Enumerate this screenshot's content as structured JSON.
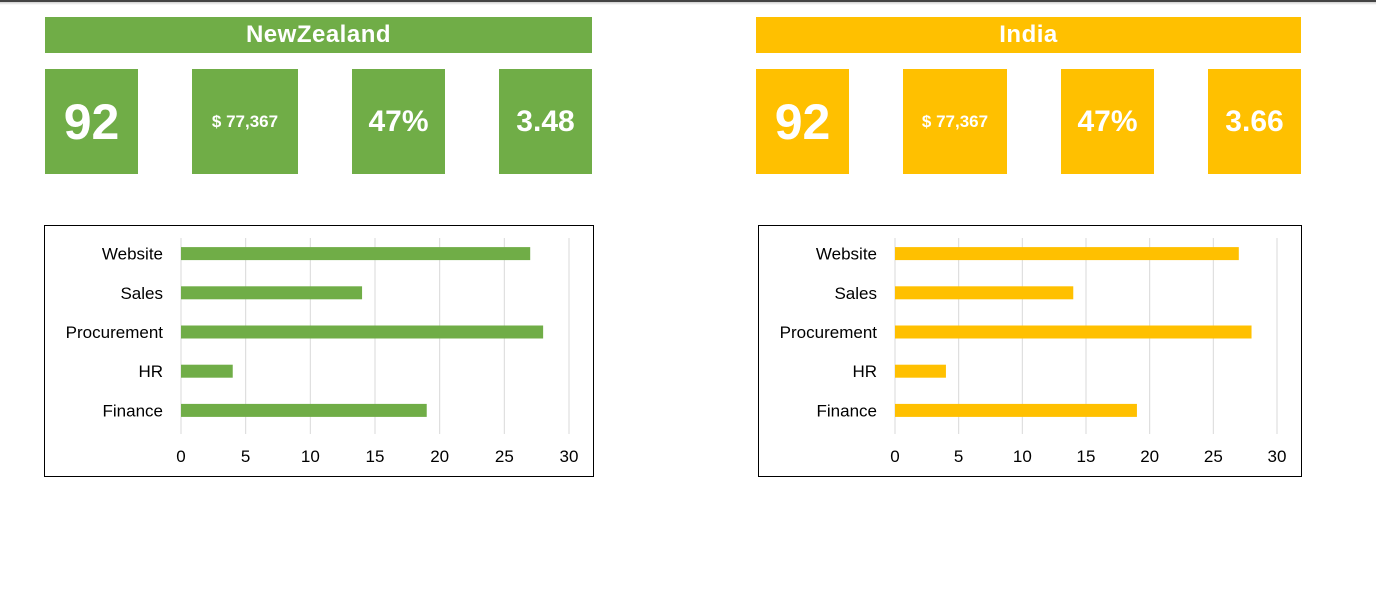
{
  "panels": [
    {
      "title": "NewZealand",
      "color": "#70AD47",
      "kpis": {
        "count": "92",
        "money": "$  77,367",
        "percent": "47%",
        "score": "3.48"
      }
    },
    {
      "title": "India",
      "color": "#FFC000",
      "kpis": {
        "count": "92",
        "money": "$ 77,367",
        "percent": "47%",
        "score": "3.66"
      }
    }
  ],
  "chart_data": [
    {
      "type": "bar",
      "orientation": "horizontal",
      "categories": [
        "Website",
        "Sales",
        "Procurement",
        "HR",
        "Finance"
      ],
      "values": [
        27,
        14,
        28,
        4,
        19
      ],
      "xlim": [
        0,
        30
      ],
      "xticks": [
        0,
        5,
        10,
        15,
        20,
        25,
        30
      ],
      "grid": true,
      "legend": "none",
      "color": "#70AD47"
    },
    {
      "type": "bar",
      "orientation": "horizontal",
      "categories": [
        "Website",
        "Sales",
        "Procurement",
        "HR",
        "Finance"
      ],
      "values": [
        27,
        14,
        28,
        4,
        19
      ],
      "xlim": [
        0,
        30
      ],
      "xticks": [
        0,
        5,
        10,
        15,
        20,
        25,
        30
      ],
      "grid": true,
      "legend": "none",
      "color": "#FFC000"
    }
  ]
}
